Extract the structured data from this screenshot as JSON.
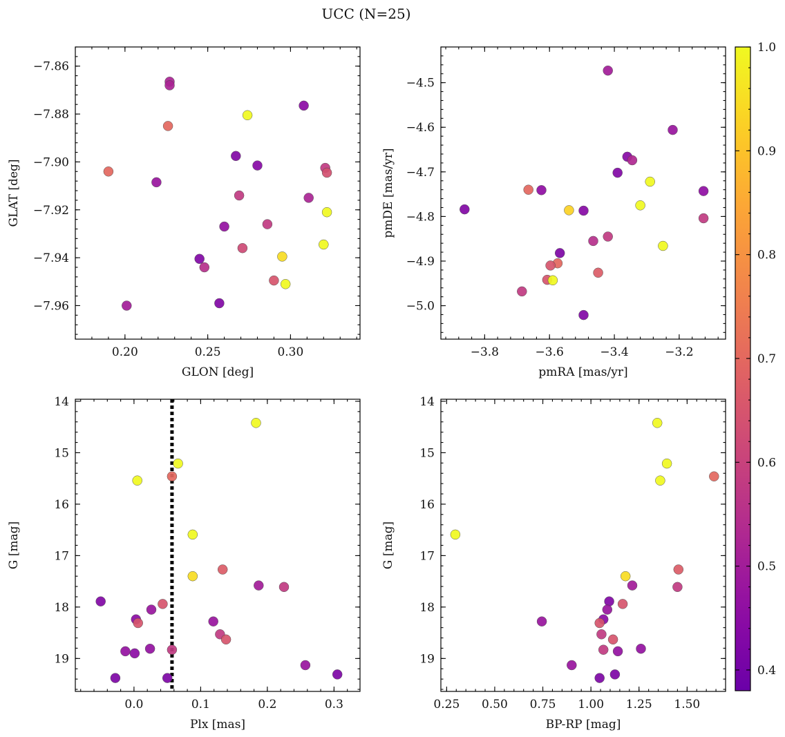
{
  "figure": {
    "title": "UCC (N=25)"
  },
  "colorbar": {
    "min": 0.38,
    "max": 1.0,
    "ticks": [
      0.4,
      0.5,
      0.6,
      0.7,
      0.8,
      0.9,
      1.0
    ],
    "tick_labels": [
      "0.4",
      "0.5",
      "0.6",
      "0.7",
      "0.8",
      "0.9",
      "1.0"
    ],
    "colormap": "plasma"
  },
  "chart_data": [
    {
      "type": "scatter",
      "id": "glon-glat",
      "xlabel": "GLON [deg]",
      "ylabel": "GLAT [deg]",
      "xlim": [
        0.17,
        0.342
      ],
      "ylim": [
        -7.974,
        -7.852
      ],
      "y_inverted": false,
      "xticks": [
        0.2,
        0.25,
        0.3
      ],
      "xtick_labels": [
        "0.20",
        "0.25",
        "0.30"
      ],
      "yticks": [
        -7.86,
        -7.88,
        -7.9,
        -7.92,
        -7.94,
        -7.96
      ],
      "ytick_labels": [
        "−7.86",
        "−7.88",
        "−7.90",
        "−7.92",
        "−7.94",
        "−7.96"
      ],
      "points": [
        {
          "x": 0.227,
          "y": -7.8665,
          "c": 0.52
        },
        {
          "x": 0.227,
          "y": -7.868,
          "c": 0.52
        },
        {
          "x": 0.274,
          "y": -7.8805,
          "c": 1.0
        },
        {
          "x": 0.308,
          "y": -7.8765,
          "c": 0.45
        },
        {
          "x": 0.226,
          "y": -7.885,
          "c": 0.7
        },
        {
          "x": 0.267,
          "y": -7.8975,
          "c": 0.43
        },
        {
          "x": 0.28,
          "y": -7.9015,
          "c": 0.44
        },
        {
          "x": 0.321,
          "y": -7.9025,
          "c": 0.58
        },
        {
          "x": 0.19,
          "y": -7.904,
          "c": 0.7
        },
        {
          "x": 0.322,
          "y": -7.9045,
          "c": 0.64
        },
        {
          "x": 0.219,
          "y": -7.9085,
          "c": 0.48
        },
        {
          "x": 0.269,
          "y": -7.914,
          "c": 0.58
        },
        {
          "x": 0.311,
          "y": -7.915,
          "c": 0.52
        },
        {
          "x": 0.322,
          "y": -7.921,
          "c": 1.0
        },
        {
          "x": 0.286,
          "y": -7.926,
          "c": 0.58
        },
        {
          "x": 0.26,
          "y": -7.927,
          "c": 0.47
        },
        {
          "x": 0.32,
          "y": -7.9345,
          "c": 1.0
        },
        {
          "x": 0.271,
          "y": -7.936,
          "c": 0.62
        },
        {
          "x": 0.295,
          "y": -7.9395,
          "c": 0.95
        },
        {
          "x": 0.245,
          "y": -7.9405,
          "c": 0.43
        },
        {
          "x": 0.248,
          "y": -7.944,
          "c": 0.55
        },
        {
          "x": 0.29,
          "y": -7.9495,
          "c": 0.65
        },
        {
          "x": 0.297,
          "y": -7.951,
          "c": 1.0
        },
        {
          "x": 0.257,
          "y": -7.959,
          "c": 0.43
        },
        {
          "x": 0.201,
          "y": -7.96,
          "c": 0.5
        }
      ]
    },
    {
      "type": "scatter",
      "id": "pmra-pmde",
      "xlabel": "pmRA [mas/yr]",
      "ylabel": "pmDE [mas/yr]",
      "xlim": [
        -3.935,
        -3.057
      ],
      "ylim": [
        -5.075,
        -4.42
      ],
      "y_inverted": false,
      "xticks": [
        -3.8,
        -3.6,
        -3.4,
        -3.2
      ],
      "xtick_labels": [
        "−3.8",
        "−3.6",
        "−3.4",
        "−3.2"
      ],
      "yticks": [
        -4.5,
        -4.6,
        -4.7,
        -4.8,
        -4.9,
        -5.0
      ],
      "ytick_labels": [
        "−4.5",
        "−4.6",
        "−4.7",
        "−4.8",
        "−4.9",
        "−5.0"
      ],
      "points": [
        {
          "x": -3.42,
          "y": -4.473,
          "c": 0.5
        },
        {
          "x": -3.22,
          "y": -4.606,
          "c": 0.48
        },
        {
          "x": -3.36,
          "y": -4.666,
          "c": 0.44
        },
        {
          "x": -3.345,
          "y": -4.674,
          "c": 0.53
        },
        {
          "x": -3.39,
          "y": -4.702,
          "c": 0.43
        },
        {
          "x": -3.29,
          "y": -4.722,
          "c": 1.0
        },
        {
          "x": -3.665,
          "y": -4.74,
          "c": 0.7
        },
        {
          "x": -3.625,
          "y": -4.741,
          "c": 0.46
        },
        {
          "x": -3.125,
          "y": -4.743,
          "c": 0.46
        },
        {
          "x": -3.32,
          "y": -4.775,
          "c": 1.0
        },
        {
          "x": -3.862,
          "y": -4.784,
          "c": 0.43
        },
        {
          "x": -3.54,
          "y": -4.786,
          "c": 0.93
        },
        {
          "x": -3.495,
          "y": -4.787,
          "c": 0.44
        },
        {
          "x": -3.125,
          "y": -4.804,
          "c": 0.58
        },
        {
          "x": -3.42,
          "y": -4.845,
          "c": 0.58
        },
        {
          "x": -3.465,
          "y": -4.855,
          "c": 0.55
        },
        {
          "x": -3.25,
          "y": -4.866,
          "c": 1.0
        },
        {
          "x": -3.568,
          "y": -4.882,
          "c": 0.42
        },
        {
          "x": -3.575,
          "y": -4.905,
          "c": 0.7
        },
        {
          "x": -3.597,
          "y": -4.91,
          "c": 0.65
        },
        {
          "x": -3.45,
          "y": -4.926,
          "c": 0.67
        },
        {
          "x": -3.607,
          "y": -4.942,
          "c": 0.65
        },
        {
          "x": -3.59,
          "y": -4.943,
          "c": 1.0
        },
        {
          "x": -3.685,
          "y": -4.968,
          "c": 0.58
        },
        {
          "x": -3.495,
          "y": -5.021,
          "c": 0.43
        }
      ]
    },
    {
      "type": "scatter",
      "id": "plx-g",
      "xlabel": "Plx [mas]",
      "ylabel": "G [mag]",
      "xlim": [
        -0.088,
        0.339
      ],
      "ylim": [
        13.96,
        19.64
      ],
      "y_inverted": true,
      "xticks": [
        0.0,
        0.1,
        0.2,
        0.3
      ],
      "xtick_labels": [
        "0.0",
        "0.1",
        "0.2",
        "0.3"
      ],
      "yticks": [
        14,
        15,
        16,
        17,
        18,
        19
      ],
      "ytick_labels": [
        "14",
        "15",
        "16",
        "17",
        "18",
        "19"
      ],
      "vline": 0.057,
      "points": [
        {
          "x": 0.183,
          "y": 14.42,
          "c": 1.0
        },
        {
          "x": 0.066,
          "y": 15.21,
          "c": 1.0
        },
        {
          "x": 0.057,
          "y": 15.46,
          "c": 0.7
        },
        {
          "x": 0.005,
          "y": 15.54,
          "c": 1.0
        },
        {
          "x": 0.088,
          "y": 16.59,
          "c": 1.0
        },
        {
          "x": 0.133,
          "y": 17.27,
          "c": 0.67
        },
        {
          "x": 0.088,
          "y": 17.4,
          "c": 0.95
        },
        {
          "x": 0.187,
          "y": 17.58,
          "c": 0.5
        },
        {
          "x": 0.225,
          "y": 17.61,
          "c": 0.58
        },
        {
          "x": -0.05,
          "y": 17.89,
          "c": 0.43
        },
        {
          "x": 0.043,
          "y": 17.94,
          "c": 0.65
        },
        {
          "x": 0.026,
          "y": 18.05,
          "c": 0.48
        },
        {
          "x": 0.003,
          "y": 18.24,
          "c": 0.45
        },
        {
          "x": 0.119,
          "y": 18.28,
          "c": 0.48
        },
        {
          "x": 0.006,
          "y": 18.31,
          "c": 0.65
        },
        {
          "x": 0.129,
          "y": 18.53,
          "c": 0.58
        },
        {
          "x": 0.138,
          "y": 18.63,
          "c": 0.65
        },
        {
          "x": 0.024,
          "y": 18.81,
          "c": 0.47
        },
        {
          "x": 0.057,
          "y": 18.83,
          "c": 0.58
        },
        {
          "x": -0.013,
          "y": 18.86,
          "c": 0.47
        },
        {
          "x": 0.001,
          "y": 18.9,
          "c": 0.45
        },
        {
          "x": 0.257,
          "y": 19.13,
          "c": 0.48
        },
        {
          "x": 0.305,
          "y": 19.31,
          "c": 0.42
        },
        {
          "x": -0.028,
          "y": 19.38,
          "c": 0.42
        },
        {
          "x": 0.05,
          "y": 19.38,
          "c": 0.42
        }
      ]
    },
    {
      "type": "scatter",
      "id": "bprp-g",
      "xlabel": "BP-RP [mag]",
      "ylabel": "G [mag]",
      "xlim": [
        0.22,
        1.7
      ],
      "ylim": [
        13.96,
        19.64
      ],
      "y_inverted": true,
      "xticks": [
        0.25,
        0.5,
        0.75,
        1.0,
        1.25,
        1.5
      ],
      "xtick_labels": [
        "0.25",
        "0.50",
        "0.75",
        "1.00",
        "1.25",
        "1.50"
      ],
      "yticks": [
        14,
        15,
        16,
        17,
        18,
        19
      ],
      "ytick_labels": [
        "14",
        "15",
        "16",
        "17",
        "18",
        "19"
      ],
      "points": [
        {
          "x": 1.345,
          "y": 14.42,
          "c": 1.0
        },
        {
          "x": 1.395,
          "y": 15.21,
          "c": 1.0
        },
        {
          "x": 1.64,
          "y": 15.46,
          "c": 0.7
        },
        {
          "x": 1.36,
          "y": 15.54,
          "c": 1.0
        },
        {
          "x": 0.295,
          "y": 16.59,
          "c": 1.0
        },
        {
          "x": 1.455,
          "y": 17.27,
          "c": 0.67
        },
        {
          "x": 1.18,
          "y": 17.4,
          "c": 0.95
        },
        {
          "x": 1.215,
          "y": 17.58,
          "c": 0.5
        },
        {
          "x": 1.45,
          "y": 17.61,
          "c": 0.58
        },
        {
          "x": 1.095,
          "y": 17.89,
          "c": 0.43
        },
        {
          "x": 1.165,
          "y": 17.94,
          "c": 0.65
        },
        {
          "x": 1.085,
          "y": 18.05,
          "c": 0.48
        },
        {
          "x": 1.065,
          "y": 18.24,
          "c": 0.45
        },
        {
          "x": 0.745,
          "y": 18.28,
          "c": 0.48
        },
        {
          "x": 1.045,
          "y": 18.31,
          "c": 0.65
        },
        {
          "x": 1.055,
          "y": 18.53,
          "c": 0.58
        },
        {
          "x": 1.115,
          "y": 18.63,
          "c": 0.65
        },
        {
          "x": 1.26,
          "y": 18.81,
          "c": 0.47
        },
        {
          "x": 1.065,
          "y": 18.83,
          "c": 0.58
        },
        {
          "x": 1.14,
          "y": 18.86,
          "c": 0.47
        },
        {
          "x": 0.9,
          "y": 19.13,
          "c": 0.48
        },
        {
          "x": 1.125,
          "y": 19.31,
          "c": 0.42
        },
        {
          "x": 1.045,
          "y": 19.38,
          "c": 0.42
        }
      ]
    }
  ]
}
